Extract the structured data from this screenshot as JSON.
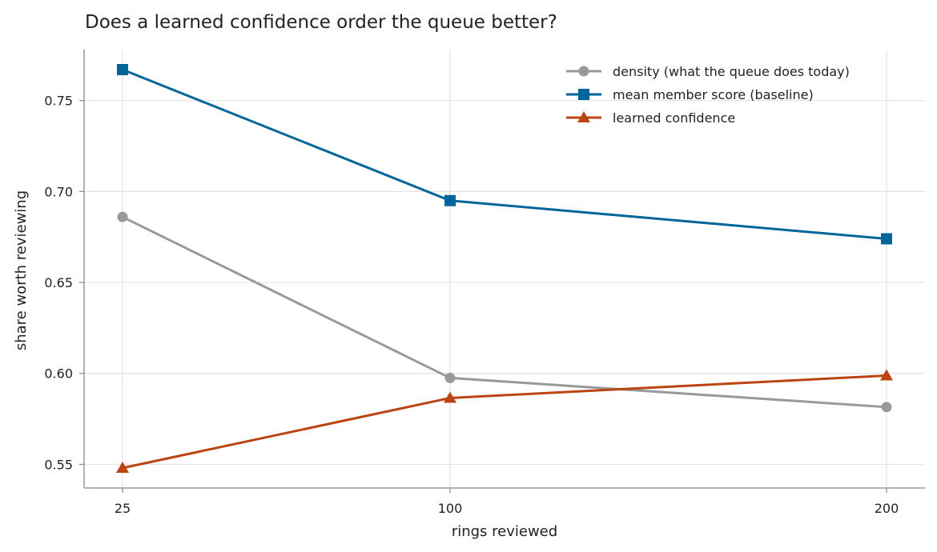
{
  "chart_data": {
    "type": "line",
    "title": "Does a learned confidence order the queue better?",
    "xlabel": "rings reviewed",
    "ylabel": "share worth reviewing",
    "categories": [
      "25",
      "100",
      "200"
    ],
    "x_tick_labels": [
      "25",
      "100",
      "200"
    ],
    "y_ticks": [
      0.55,
      0.6,
      0.65,
      0.7,
      0.75
    ],
    "y_tick_labels": [
      "0.55",
      "0.60",
      "0.65",
      "0.70",
      "0.75"
    ],
    "ylim": [
      0.537,
      0.778
    ],
    "grid": true,
    "legend_position": "top-right",
    "series": [
      {
        "name": "density (what the queue does today)",
        "values": [
          0.686,
          0.5975,
          0.5815
        ],
        "color": "#999999",
        "marker": "circle"
      },
      {
        "name": "mean member score (baseline)",
        "values": [
          0.767,
          0.695,
          0.674
        ],
        "color": "#006699",
        "marker": "square"
      },
      {
        "name": "learned confidence",
        "values": [
          0.548,
          0.5865,
          0.5988
        ],
        "color": "#bb4411",
        "marker": "triangle"
      }
    ]
  }
}
